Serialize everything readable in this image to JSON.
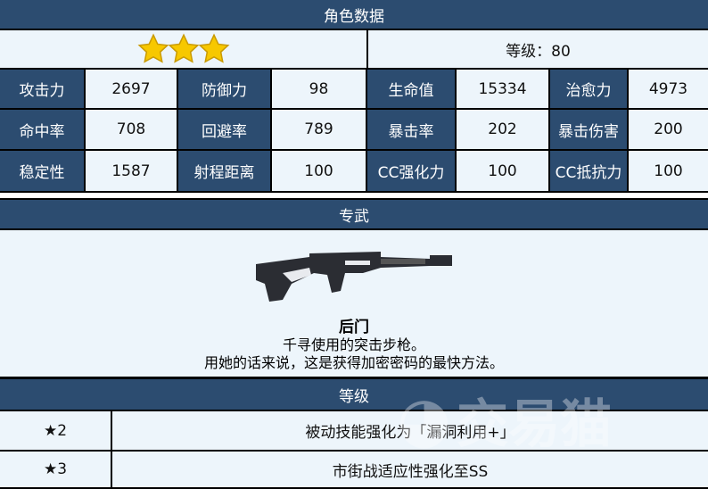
{
  "title": "角色数据",
  "rarity_stars": 3,
  "level_text": "等级：80",
  "stats": [
    [
      {
        "label": "攻击力",
        "value": "2697"
      },
      {
        "label": "防御力",
        "value": "98"
      },
      {
        "label": "生命值",
        "value": "15334"
      },
      {
        "label": "治愈力",
        "value": "4973"
      }
    ],
    [
      {
        "label": "命中率",
        "value": "708"
      },
      {
        "label": "回避率",
        "value": "789"
      },
      {
        "label": "暴击率",
        "value": "202"
      },
      {
        "label": "暴击伤害",
        "value": "200"
      }
    ],
    [
      {
        "label": "稳定性",
        "value": "1587"
      },
      {
        "label": "射程距离",
        "value": "100"
      },
      {
        "label": "CC强化力",
        "value": "100"
      },
      {
        "label": "CC抵抗力",
        "value": "100"
      }
    ]
  ],
  "weapon": {
    "section_title": "专武",
    "name": "后门",
    "desc1": "千寻使用的突击步枪。",
    "desc2": "用她的话来说，这是获得加密密码的最快方法。"
  },
  "levels": {
    "section_title": "等级",
    "rows": [
      {
        "star": "★2",
        "effect": "被动技能强化为「漏洞利用+」"
      },
      {
        "star": "★3",
        "effect": "市街战适应性强化至SS"
      }
    ]
  },
  "watermark": "交易猫",
  "colors": {
    "header": "#2c4c70",
    "cell": "#edf5fb",
    "star": "#f7c800"
  }
}
